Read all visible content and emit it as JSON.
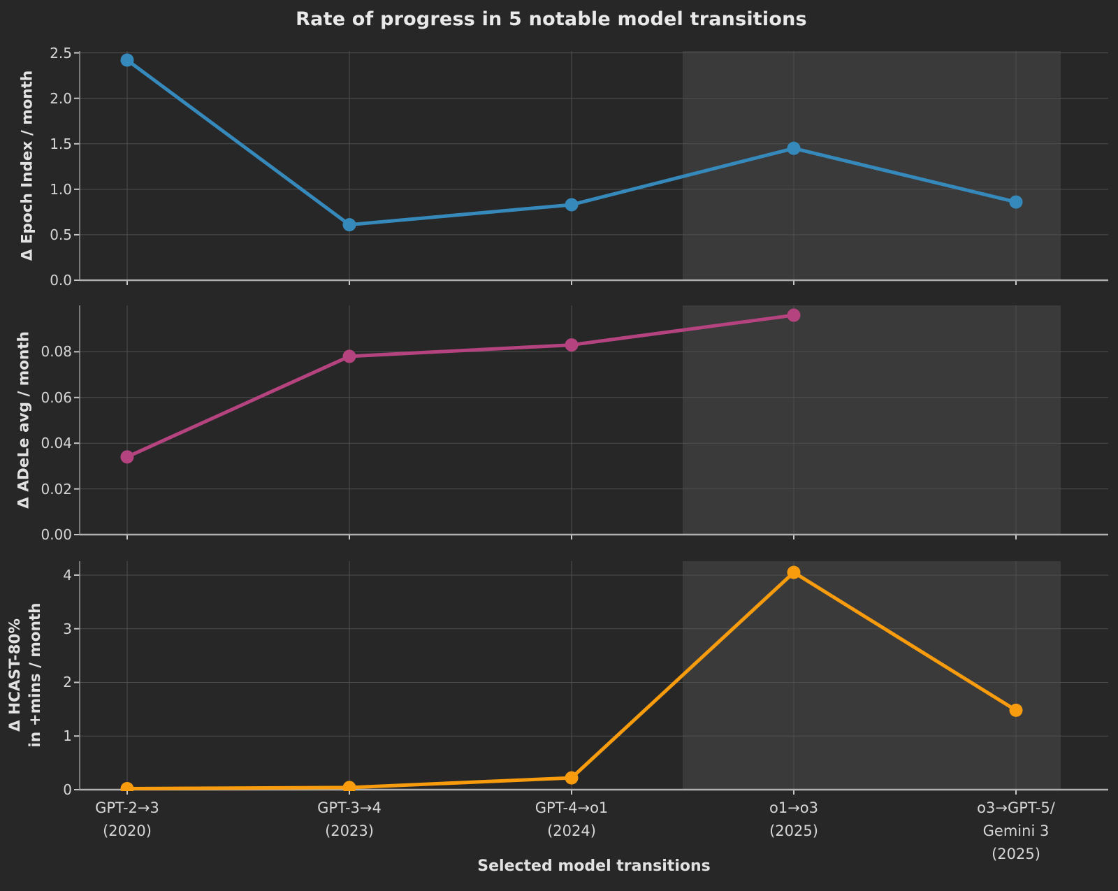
{
  "chart_data": {
    "type": "line",
    "title": "Rate of progress in 5 notable model transitions",
    "xlabel": "Selected model transitions",
    "categories": [
      "GPT-2→3\n(2020)",
      "GPT-3→4\n(2023)",
      "GPT-4→o1\n(2024)",
      "o1→o3\n(2025)",
      "o3→GPT-5/\nGemini 3\n(2025)"
    ],
    "highlight_region": {
      "starts_between": [
        "GPT-4→o1 (2024)",
        "o1→o3 (2025)"
      ],
      "ends_at": "right edge of plot",
      "color": "rgba(255,255,255,0.09)"
    },
    "legend": "none",
    "grid": "on",
    "panels": [
      {
        "ylabel": "Δ Epoch Index / month",
        "series_color": "#3689bb",
        "values": [
          2.42,
          0.61,
          0.83,
          1.45,
          0.86
        ],
        "ytick_labels": [
          "0.0",
          "0.5",
          "1.0",
          "1.5",
          "2.0",
          "2.5"
        ],
        "ylim": [
          0,
          2.52
        ]
      },
      {
        "ylabel": "Δ ADeLe avg / month",
        "series_color": "#b5437f",
        "values": [
          0.034,
          0.078,
          0.083,
          0.096,
          null
        ],
        "ytick_labels": [
          "0.00",
          "0.02",
          "0.04",
          "0.06",
          "0.08"
        ],
        "ylim": [
          0,
          0.1003
        ]
      },
      {
        "ylabel": "Δ HCAST-80%\nin +mins / month",
        "series_color": "#f89c0e",
        "values": [
          0.02,
          0.04,
          0.22,
          4.05,
          1.48
        ],
        "ytick_labels": [
          "0",
          "1",
          "2",
          "3",
          "4"
        ],
        "ylim": [
          0,
          4.26
        ]
      }
    ],
    "colors": {
      "background": "#272727",
      "highlight": "rgba(255,255,255,0.09)",
      "grid": "#4f4f4f",
      "spine_left": "#909090",
      "spine_bottom": "#b0b0b0",
      "tick": "#c8c8c8",
      "text": "#d6d6d6"
    }
  }
}
